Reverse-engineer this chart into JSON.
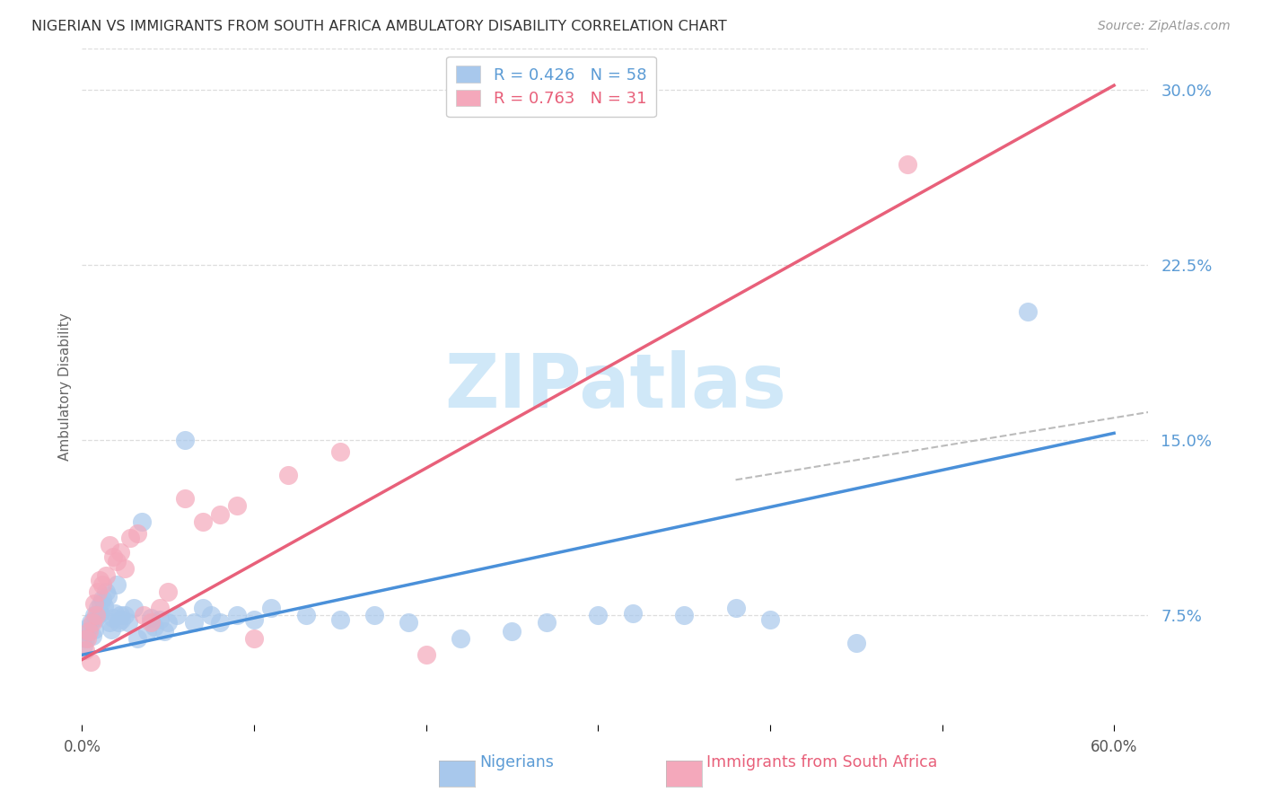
{
  "title": "NIGERIAN VS IMMIGRANTS FROM SOUTH AFRICA AMBULATORY DISABILITY CORRELATION CHART",
  "source": "Source: ZipAtlas.com",
  "ylabel": "Ambulatory Disability",
  "xlim": [
    0.0,
    0.62
  ],
  "ylim": [
    0.028,
    0.318
  ],
  "xticks": [
    0.0,
    0.1,
    0.2,
    0.3,
    0.4,
    0.5,
    0.6
  ],
  "xticklabels": [
    "0.0%",
    "",
    "",
    "",
    "",
    "",
    "60.0%"
  ],
  "yticks_right": [
    0.075,
    0.15,
    0.225,
    0.3
  ],
  "ytick_right_labels": [
    "7.5%",
    "15.0%",
    "22.5%",
    "30.0%"
  ],
  "blue_color": "#A8C8EC",
  "pink_color": "#F4A8BB",
  "blue_line_color": "#4A90D9",
  "pink_line_color": "#E8607A",
  "gray_dash_color": "#BBBBBB",
  "watermark_color": "#D0E8F8",
  "title_color": "#333333",
  "source_color": "#999999",
  "tick_color": "#5B9BD5",
  "ylabel_color": "#666666",
  "blue_trend": [
    0.0,
    0.058,
    0.6,
    0.153
  ],
  "pink_trend": [
    0.0,
    0.056,
    0.6,
    0.302
  ],
  "gray_dash": [
    0.38,
    0.133,
    0.62,
    0.162
  ],
  "nigerians_x": [
    0.001,
    0.002,
    0.003,
    0.004,
    0.005,
    0.006,
    0.007,
    0.007,
    0.008,
    0.009,
    0.01,
    0.011,
    0.012,
    0.013,
    0.014,
    0.015,
    0.016,
    0.017,
    0.018,
    0.019,
    0.02,
    0.021,
    0.022,
    0.023,
    0.025,
    0.027,
    0.03,
    0.032,
    0.035,
    0.038,
    0.04,
    0.042,
    0.045,
    0.048,
    0.05,
    0.055,
    0.06,
    0.065,
    0.07,
    0.075,
    0.08,
    0.09,
    0.1,
    0.11,
    0.13,
    0.15,
    0.17,
    0.19,
    0.22,
    0.25,
    0.27,
    0.3,
    0.32,
    0.35,
    0.38,
    0.4,
    0.45,
    0.55
  ],
  "nigerians_y": [
    0.062,
    0.065,
    0.068,
    0.07,
    0.072,
    0.066,
    0.075,
    0.069,
    0.074,
    0.078,
    0.076,
    0.08,
    0.082,
    0.079,
    0.085,
    0.083,
    0.072,
    0.069,
    0.074,
    0.076,
    0.088,
    0.072,
    0.075,
    0.073,
    0.075,
    0.072,
    0.078,
    0.065,
    0.115,
    0.068,
    0.074,
    0.07,
    0.073,
    0.068,
    0.072,
    0.075,
    0.15,
    0.072,
    0.078,
    0.075,
    0.072,
    0.075,
    0.073,
    0.078,
    0.075,
    0.073,
    0.075,
    0.072,
    0.065,
    0.068,
    0.072,
    0.075,
    0.076,
    0.075,
    0.078,
    0.073,
    0.063,
    0.205
  ],
  "sa_x": [
    0.002,
    0.003,
    0.004,
    0.005,
    0.006,
    0.007,
    0.008,
    0.009,
    0.01,
    0.012,
    0.014,
    0.016,
    0.018,
    0.02,
    0.022,
    0.025,
    0.028,
    0.032,
    0.036,
    0.04,
    0.045,
    0.05,
    0.06,
    0.07,
    0.08,
    0.09,
    0.1,
    0.12,
    0.15,
    0.2,
    0.48
  ],
  "sa_y": [
    0.06,
    0.065,
    0.068,
    0.055,
    0.072,
    0.08,
    0.075,
    0.085,
    0.09,
    0.088,
    0.092,
    0.105,
    0.1,
    0.098,
    0.102,
    0.095,
    0.108,
    0.11,
    0.075,
    0.072,
    0.078,
    0.085,
    0.125,
    0.115,
    0.118,
    0.122,
    0.065,
    0.135,
    0.145,
    0.058,
    0.268
  ]
}
